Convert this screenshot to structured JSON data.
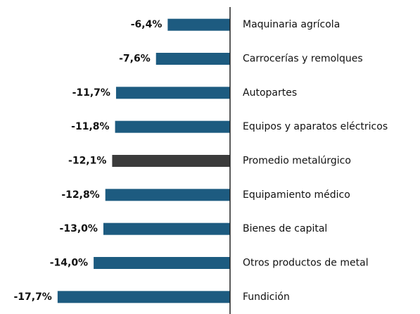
{
  "chart_data": {
    "type": "bar",
    "orientation": "horizontal",
    "categories": [
      "Maquinaria agrícola",
      "Carrocerías y remolques",
      "Autopartes",
      "Equipos y aparatos eléctricos",
      "Promedio metalúrgico",
      "Equipamiento médico",
      "Bienes de capital",
      "Otros productos de metal",
      "Fundición"
    ],
    "values": [
      -6.4,
      -7.6,
      -11.7,
      -11.8,
      -12.1,
      -12.8,
      -13.0,
      -14.0,
      -17.7
    ],
    "value_labels": [
      "-6,4%",
      "-7,6%",
      "-11,7%",
      "-11,8%",
      "-12,1%",
      "-12,8%",
      "-13,0%",
      "-14,0%",
      "-17,7%"
    ],
    "colors": [
      "#1d5b80",
      "#1d5b80",
      "#1d5b80",
      "#1d5b80",
      "#3b3b3b",
      "#1d5b80",
      "#1d5b80",
      "#1d5b80",
      "#1d5b80"
    ],
    "xlim": [
      -20,
      0
    ]
  }
}
